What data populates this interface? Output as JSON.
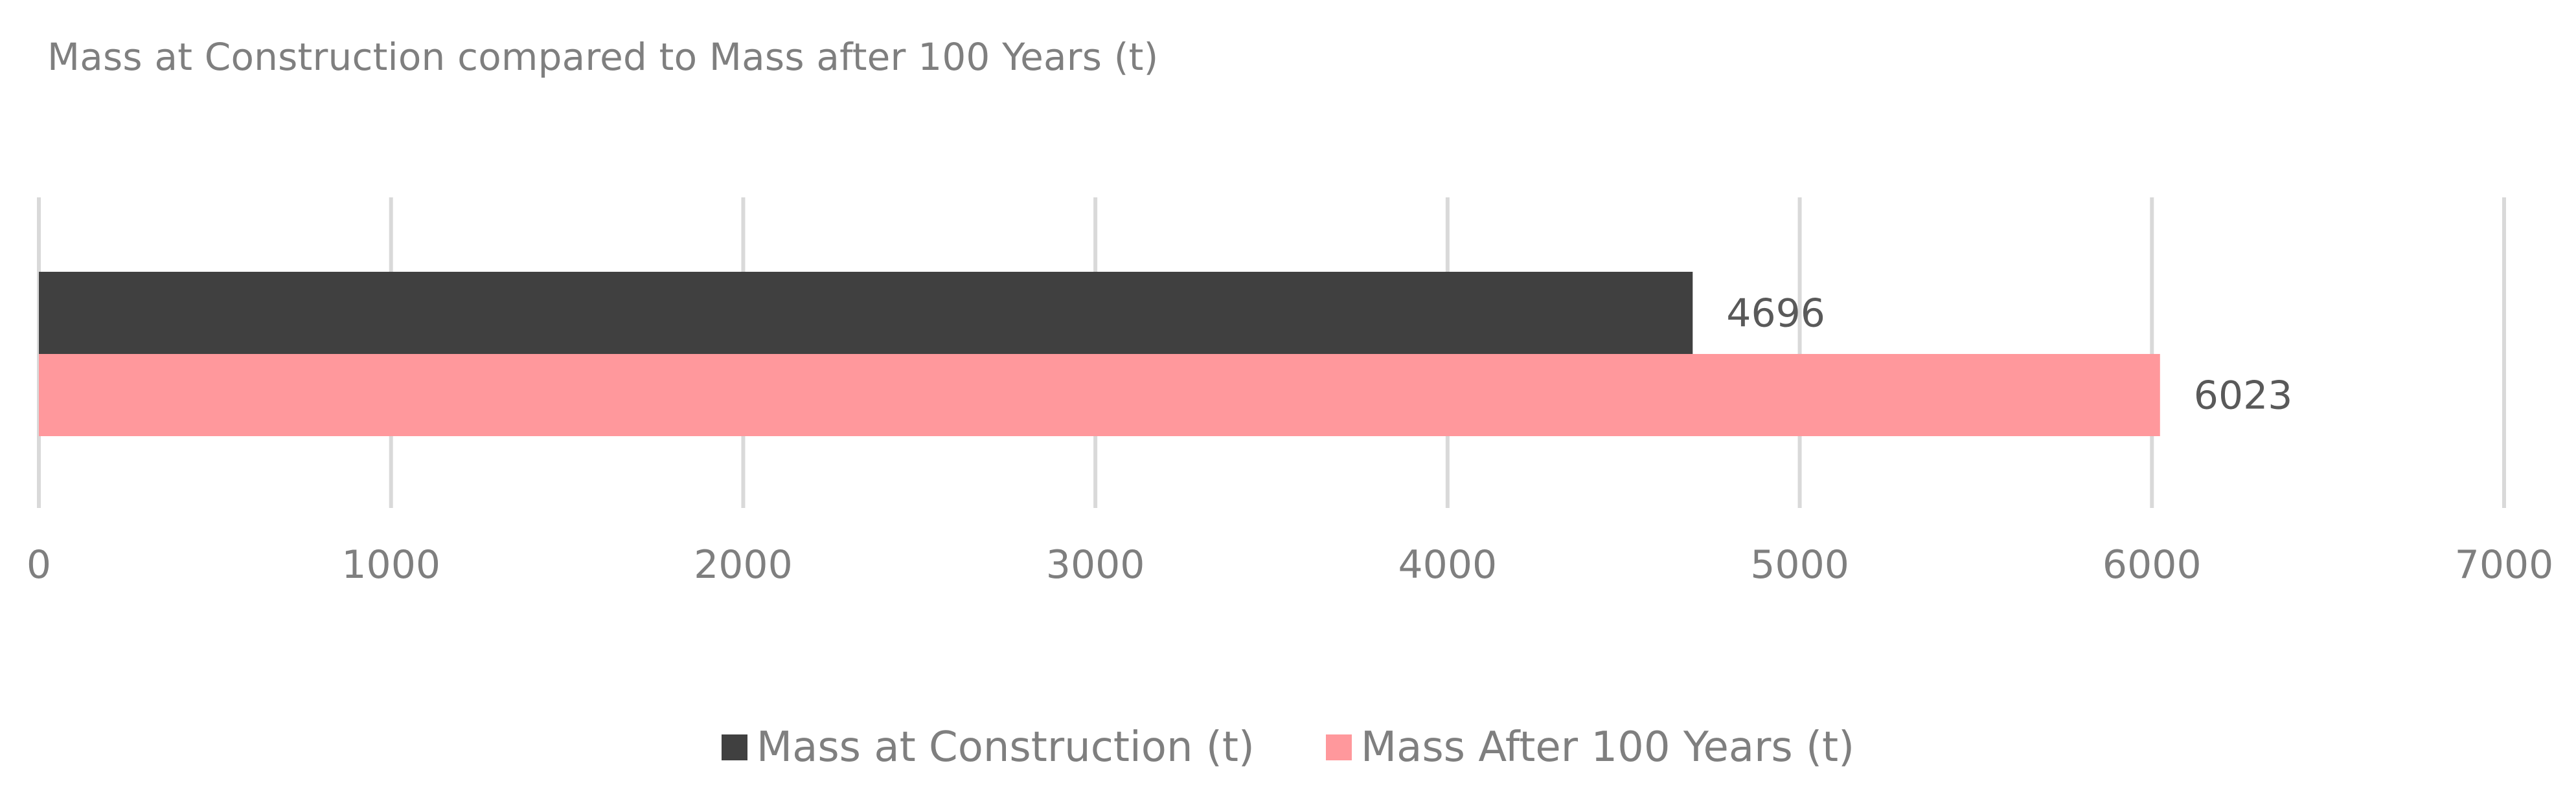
{
  "colors": {
    "series_construction": "#404040",
    "series_after_100": "#ff989c",
    "gridline": "#d9d9d9",
    "text": "#7f7f7f",
    "data_label_text": "#595959"
  },
  "chart_data": {
    "type": "bar",
    "orientation": "horizontal",
    "title": "Mass at Construction compared to Mass after 100 Years (t)",
    "xlabel": "",
    "ylabel": "",
    "xlim": [
      0,
      7000
    ],
    "x_ticks": [
      0,
      1000,
      2000,
      3000,
      4000,
      5000,
      6000,
      7000
    ],
    "grid": "vertical",
    "legend_position": "bottom",
    "categories": [
      ""
    ],
    "series": [
      {
        "name": "Mass at Construction (t)",
        "values": [
          4696
        ],
        "color": "#404040"
      },
      {
        "name": "Mass After 100 Years (t)",
        "values": [
          6023
        ],
        "color": "#ff989c"
      }
    ],
    "data_labels": [
      "4696",
      "6023"
    ]
  }
}
